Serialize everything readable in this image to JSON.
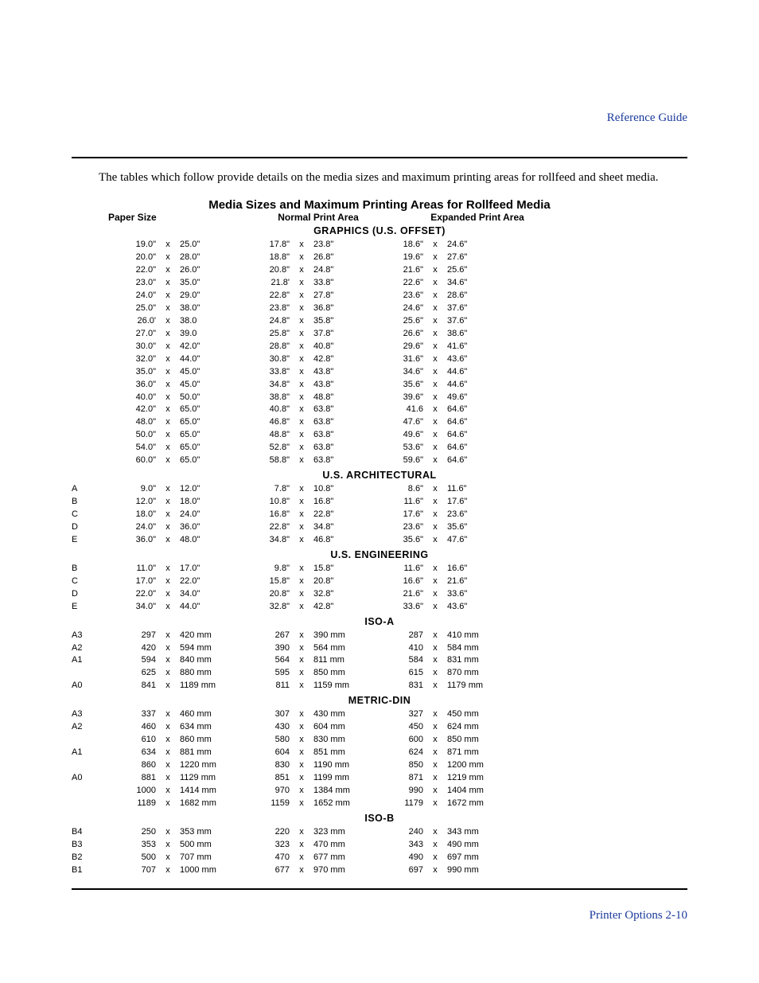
{
  "header_label": "Reference Guide",
  "intro_text": "The tables which follow provide details on the media sizes and maximum printing areas for rollfeed and sheet media.",
  "table_title": "Media Sizes and Maximum Printing Areas for Rollfeed Media",
  "column_headers": {
    "paper_size": "Paper  Size",
    "normal": "Normal  Print  Area",
    "expanded": "Expanded  Print  Area"
  },
  "x_glyph": "x",
  "sections": [
    {
      "title": "GRAPHICS (U.S. OFFSET)",
      "rows": [
        {
          "label": "",
          "pw": "19.0\"",
          "ph": "25.0\"",
          "nw": "17.8\"",
          "nh": "23.8\"",
          "ew": "18.6\"",
          "eh": "24.6\""
        },
        {
          "label": "",
          "pw": "20.0\"",
          "ph": "28.0\"",
          "nw": "18.8\"",
          "nh": "26.8\"",
          "ew": "19.6\"",
          "eh": "27.6\""
        },
        {
          "label": "",
          "pw": "22.0\"",
          "ph": "26.0\"",
          "nw": "20.8\"",
          "nh": "24.8\"",
          "ew": "21.6\"",
          "eh": "25.6\""
        },
        {
          "label": "",
          "pw": "23.0\"",
          "ph": "35.0\"",
          "nw": "21.8'",
          "nh": "33.8\"",
          "ew": "22.6\"",
          "eh": "34.6\""
        },
        {
          "label": "",
          "pw": "24.0\"",
          "ph": "29.0\"",
          "nw": "22.8\"",
          "nh": "27.8\"",
          "ew": "23.6\"",
          "eh": "28.6\""
        },
        {
          "label": "",
          "pw": "25.0\"",
          "ph": "38.0\"",
          "nw": "23.8\"",
          "nh": "36.8\"",
          "ew": "24.6\"",
          "eh": "37.6\""
        },
        {
          "label": "",
          "pw": "26.0'",
          "ph": "38.0",
          "nw": "24.8\"",
          "nh": "35.8\"",
          "ew": "25.6\"",
          "eh": "37.6\""
        },
        {
          "label": "",
          "pw": "27.0\"",
          "ph": "39.0",
          "nw": "25.8\"",
          "nh": "37.8\"",
          "ew": "26.6\"",
          "eh": "38.6\""
        },
        {
          "label": "",
          "pw": "30.0\"",
          "ph": "42.0\"",
          "nw": "28.8\"",
          "nh": "40.8\"",
          "ew": "29.6\"",
          "eh": "41.6\""
        },
        {
          "label": "",
          "pw": "32.0\"",
          "ph": "44.0\"",
          "nw": "30.8\"",
          "nh": "42.8\"",
          "ew": "31.6\"",
          "eh": "43.6\""
        },
        {
          "label": "",
          "pw": "35.0\"",
          "ph": "45.0\"",
          "nw": "33.8\"",
          "nh": "43.8\"",
          "ew": "34.6\"",
          "eh": "44.6\""
        },
        {
          "label": "",
          "pw": "36.0\"",
          "ph": "45.0\"",
          "nw": "34.8\"",
          "nh": "43.8\"",
          "ew": "35.6\"",
          "eh": "44.6\""
        },
        {
          "label": "",
          "pw": "40.0\"",
          "ph": "50.0\"",
          "nw": "38.8\"",
          "nh": "48.8\"",
          "ew": "39.6\"",
          "eh": "49.6\""
        },
        {
          "label": "",
          "pw": "42.0\"",
          "ph": "65.0\"",
          "nw": "40.8\"",
          "nh": "63.8\"",
          "ew": "41.6",
          "eh": "64.6\""
        },
        {
          "label": "",
          "pw": "48.0\"",
          "ph": "65.0\"",
          "nw": "46.8\"",
          "nh": "63.8\"",
          "ew": "47.6\"",
          "eh": "64.6\""
        },
        {
          "label": "",
          "pw": "50.0\"",
          "ph": "65.0\"",
          "nw": "48.8\"",
          "nh": "63.8\"",
          "ew": "49.6\"",
          "eh": "64.6\""
        },
        {
          "label": "",
          "pw": "54.0\"",
          "ph": "65.0\"",
          "nw": "52.8\"",
          "nh": "63.8\"",
          "ew": "53.6\"",
          "eh": "64.6\""
        },
        {
          "label": "",
          "pw": "60.0\"",
          "ph": "65.0\"",
          "nw": "58.8\"",
          "nh": "63.8\"",
          "ew": "59.6\"",
          "eh": "64.6\""
        }
      ]
    },
    {
      "title": "U.S. ARCHITECTURAL",
      "rows": [
        {
          "label": "A",
          "pw": "9.0\"",
          "ph": "12.0\"",
          "nw": "7.8\"",
          "nh": "10.8\"",
          "ew": "8.6\"",
          "eh": "11.6\""
        },
        {
          "label": "B",
          "pw": "12.0\"",
          "ph": "18.0\"",
          "nw": "10.8\"",
          "nh": "16.8\"",
          "ew": "11.6\"",
          "eh": "17.6\""
        },
        {
          "label": "C",
          "pw": "18.0\"",
          "ph": "24.0\"",
          "nw": "16.8\"",
          "nh": "22.8\"",
          "ew": "17.6\"",
          "eh": "23.6\""
        },
        {
          "label": "D",
          "pw": "24.0\"",
          "ph": "36.0\"",
          "nw": "22.8\"",
          "nh": "34.8\"",
          "ew": "23.6\"",
          "eh": "35.6\""
        },
        {
          "label": "E",
          "pw": "36.0\"",
          "ph": "48.0\"",
          "nw": "34.8\"",
          "nh": "46.8\"",
          "ew": "35.6\"",
          "eh": "47.6\""
        }
      ]
    },
    {
      "title": "U.S. ENGINEERING",
      "rows": [
        {
          "label": "B",
          "pw": "11.0\"",
          "ph": "17.0\"",
          "nw": "9.8\"",
          "nh": "15.8\"",
          "ew": "11.6\"",
          "eh": "16.6\""
        },
        {
          "label": "C",
          "pw": "17.0\"",
          "ph": "22.0\"",
          "nw": "15.8\"",
          "nh": "20.8\"",
          "ew": "16.6\"",
          "eh": "21.6\""
        },
        {
          "label": "D",
          "pw": "22.0\"",
          "ph": "34.0\"",
          "nw": "20.8\"",
          "nh": "32.8\"",
          "ew": "21.6\"",
          "eh": "33.6\""
        },
        {
          "label": "E",
          "pw": "34.0\"",
          "ph": "44.0\"",
          "nw": "32.8\"",
          "nh": "42.8\"",
          "ew": "33.6\"",
          "eh": "43.6\""
        }
      ]
    },
    {
      "title": "ISO-A",
      "rows": [
        {
          "label": "A3",
          "pw": "297",
          "ph": "420 mm",
          "nw": "267",
          "nh": "390 mm",
          "ew": "287",
          "eh": "410 mm"
        },
        {
          "label": "A2",
          "pw": "420",
          "ph": "594 mm",
          "nw": "390",
          "nh": "564 mm",
          "ew": "410",
          "eh": "584 mm"
        },
        {
          "label": "A1",
          "pw": "594",
          "ph": "840 mm",
          "nw": "564",
          "nh": "811 mm",
          "ew": "584",
          "eh": "831 mm"
        },
        {
          "label": "",
          "pw": "625",
          "ph": "880 mm",
          "nw": "595",
          "nh": "850 mm",
          "ew": "615",
          "eh": "870 mm"
        },
        {
          "label": "A0",
          "pw": "841",
          "ph": "1189 mm",
          "nw": "811",
          "nh": "1159 mm",
          "ew": "831",
          "eh": "1179 mm"
        }
      ]
    },
    {
      "title": "METRIC-DIN",
      "rows": [
        {
          "label": "A3",
          "pw": "337",
          "ph": "460 mm",
          "nw": "307",
          "nh": "430 mm",
          "ew": "327",
          "eh": "450 mm"
        },
        {
          "label": "A2",
          "pw": "460",
          "ph": "634 mm",
          "nw": "430",
          "nh": "604 mm",
          "ew": "450",
          "eh": "624 mm"
        },
        {
          "label": "",
          "pw": "610",
          "ph": "860 mm",
          "nw": "580",
          "nh": "830 mm",
          "ew": "600",
          "eh": "850 mm"
        },
        {
          "label": "A1",
          "pw": "634",
          "ph": "881 mm",
          "nw": "604",
          "nh": "851 mm",
          "ew": "624",
          "eh": "871 mm"
        },
        {
          "label": "",
          "pw": "860",
          "ph": "1220 mm",
          "nw": "830",
          "nh": "1190 mm",
          "ew": "850",
          "eh": "1200 mm"
        },
        {
          "label": "A0",
          "pw": "881",
          "ph": "1129 mm",
          "nw": "851",
          "nh": "1199 mm",
          "ew": "871",
          "eh": "1219 mm"
        },
        {
          "label": "",
          "pw": "1000",
          "ph": "1414 mm",
          "nw": "970",
          "nh": "1384 mm",
          "ew": "990",
          "eh": "1404 mm"
        },
        {
          "label": "",
          "pw": "1189",
          "ph": "1682 mm",
          "nw": "1159",
          "nh": "1652 mm",
          "ew": "1179",
          "eh": "1672 mm"
        }
      ]
    },
    {
      "title": "ISO-B",
      "rows": [
        {
          "label": "B4",
          "pw": "250",
          "ph": "353 mm",
          "nw": "220",
          "nh": "323 mm",
          "ew": "240",
          "eh": "343 mm"
        },
        {
          "label": "B3",
          "pw": "353",
          "ph": "500 mm",
          "nw": "323",
          "nh": "470 mm",
          "ew": "343",
          "eh": "490 mm"
        },
        {
          "label": "B2",
          "pw": "500",
          "ph": "707 mm",
          "nw": "470",
          "nh": "677 mm",
          "ew": "490",
          "eh": "697 mm"
        },
        {
          "label": "B1",
          "pw": "707",
          "ph": "1000 mm",
          "nw": "677",
          "nh": "970 mm",
          "ew": "697",
          "eh": "990 mm"
        }
      ]
    }
  ],
  "footer_text": "Printer Options  2-10"
}
